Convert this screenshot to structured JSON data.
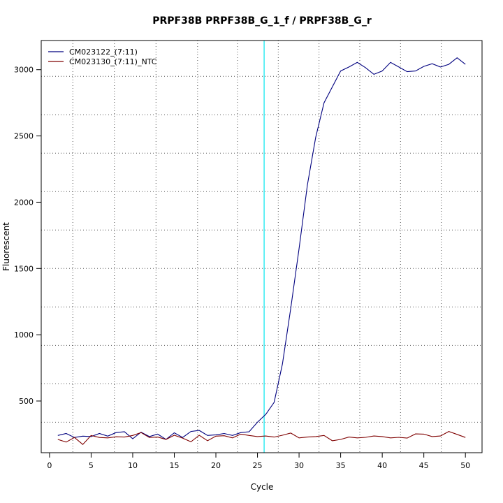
{
  "chart_data": {
    "type": "line",
    "title": "PRPF38B  PRPF38B_G_1_f / PRPF38B_G_r",
    "xlabel": "Cycle",
    "ylabel": "Fluorescent",
    "xlim": [
      -1,
      52
    ],
    "ylim": [
      110,
      3220
    ],
    "x_ticks": [
      0,
      5,
      10,
      15,
      20,
      25,
      30,
      35,
      40,
      45,
      50
    ],
    "y_ticks": [
      500,
      1000,
      1500,
      2000,
      2500,
      3000
    ],
    "grid": true,
    "grid_v": [
      2.8,
      7.8,
      12.8,
      17.8,
      22.6,
      27.5,
      32.4,
      37.3,
      42.2,
      47.1
    ],
    "grid_h": [
      340,
      630,
      920,
      1210,
      1500,
      1790,
      2080,
      2370,
      2660,
      2950
    ],
    "threshold_x": 25.8,
    "threshold_color": "#00e5ee",
    "legend_position": "top-left",
    "x": [
      1,
      2,
      3,
      4,
      5,
      6,
      7,
      8,
      9,
      10,
      11,
      12,
      13,
      14,
      15,
      16,
      17,
      18,
      19,
      20,
      21,
      22,
      23,
      24,
      25,
      26,
      27,
      28,
      29,
      30,
      31,
      32,
      33,
      34,
      35,
      36,
      37,
      38,
      39,
      40,
      41,
      42,
      43,
      44,
      45,
      46,
      47,
      48,
      49,
      50
    ],
    "series": [
      {
        "name": "CM023122_(7:11)",
        "color": "#00007f",
        "values": [
          240,
          255,
          225,
          235,
          232,
          255,
          235,
          262,
          268,
          215,
          265,
          232,
          250,
          210,
          260,
          225,
          270,
          278,
          240,
          245,
          255,
          240,
          262,
          268,
          340,
          400,
          490,
          780,
          1200,
          1650,
          2130,
          2490,
          2750,
          2870,
          2990,
          3020,
          3055,
          3015,
          2965,
          2990,
          3055,
          3020,
          2985,
          2990,
          3025,
          3045,
          3020,
          3040,
          3090,
          3040
        ]
      },
      {
        "name": "CM023130_(7:11)_NTC",
        "color": "#7f0000",
        "values": [
          210,
          190,
          225,
          172,
          240,
          225,
          222,
          230,
          228,
          240,
          262,
          225,
          228,
          210,
          242,
          220,
          192,
          242,
          200,
          235,
          238,
          222,
          250,
          240,
          232,
          236,
          228,
          242,
          258,
          222,
          228,
          232,
          240,
          200,
          210,
          228,
          222,
          226,
          236,
          232,
          222,
          226,
          220,
          252,
          250,
          232,
          236,
          270,
          248,
          225
        ]
      }
    ]
  }
}
